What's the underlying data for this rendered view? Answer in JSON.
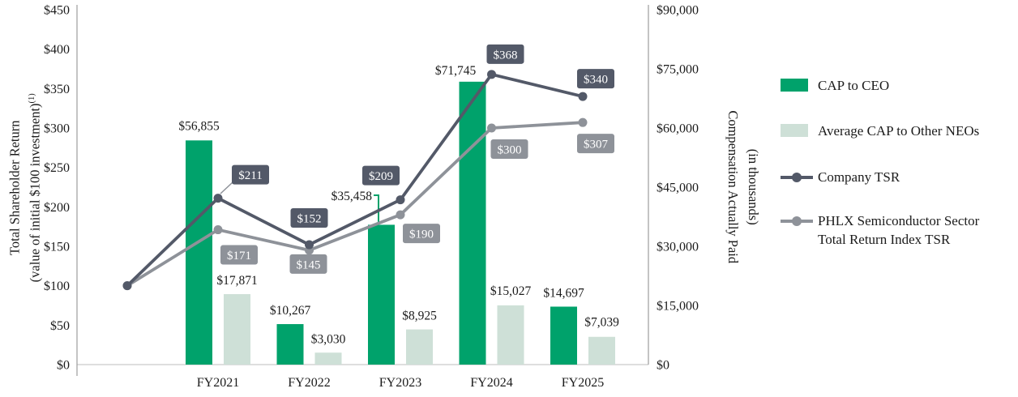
{
  "chart_data": {
    "type": "combo-bar-line",
    "title": "",
    "categories": [
      "FY2021",
      "FY2022",
      "FY2023",
      "FY2024",
      "FY2025"
    ],
    "bar_series": [
      {
        "name": "CAP to CEO",
        "color": "#00A26B",
        "axis": "right",
        "values_thousands": [
          56855,
          10267,
          35458,
          71745,
          14697
        ],
        "labels": [
          "$56,855",
          "$10,267",
          "$35,458",
          "$71,745",
          "$14,697"
        ]
      },
      {
        "name": "Average CAP to Other NEOs",
        "color": "#CEE0D7",
        "axis": "right",
        "values_thousands": [
          17871,
          3030,
          8925,
          15027,
          7039
        ],
        "labels": [
          "$17,871",
          "$3,030",
          "$8,925",
          "$15,027",
          "$7,039"
        ]
      }
    ],
    "line_series": [
      {
        "name": "Company TSR",
        "color": "#535968",
        "axis": "left",
        "x": [
          "start",
          "FY2021",
          "FY2022",
          "FY2023",
          "FY2024",
          "FY2025"
        ],
        "values": [
          100,
          211,
          152,
          209,
          368,
          340
        ],
        "labels": [
          "",
          "$211",
          "$152",
          "$209",
          "$368",
          "$340"
        ]
      },
      {
        "name": "PHLX Semiconductor Sector Total Return Index TSR",
        "color": "#8E9299",
        "axis": "left",
        "x": [
          "start",
          "FY2021",
          "FY2022",
          "FY2023",
          "FY2024",
          "FY2025"
        ],
        "values": [
          100,
          171,
          145,
          190,
          300,
          307
        ],
        "labels": [
          "",
          "$171",
          "$145",
          "$190",
          "$300",
          "$307"
        ]
      }
    ],
    "left_axis": {
      "min": 0,
      "max": 450,
      "step": 50,
      "ticks": [
        "$450",
        "$400",
        "$350",
        "$300",
        "$250",
        "$200",
        "$150",
        "$100",
        "$50",
        "$0"
      ]
    },
    "right_axis": {
      "min": 0,
      "max": 90000,
      "step": 15000,
      "ticks": [
        "$90,000",
        "$75,000",
        "$60,000",
        "$45,000",
        "$30,000",
        "$15,000",
        "$0"
      ]
    },
    "grid": "off",
    "legend_position": "right"
  },
  "left_axis_title": {
    "line1": "Total Shareholder Return",
    "line2": "(value of initial $100 investment)",
    "superscript": "(1)"
  },
  "right_axis_title": {
    "line1": "Compensation Actually Paid",
    "line2": "(in thousands)"
  },
  "legend": {
    "items": [
      {
        "label": "CAP to CEO",
        "marker": "square",
        "color": "#00A26B"
      },
      {
        "label": "Average CAP to Other NEOs",
        "marker": "square",
        "color": "#CEE0D7"
      },
      {
        "label": "Company TSR",
        "marker": "line-dot",
        "color": "#535968"
      },
      {
        "label_line1": "PHLX Semiconductor Sector",
        "label_line2": "Total Return Index TSR",
        "marker": "line-dot",
        "color": "#8E9299"
      }
    ]
  }
}
